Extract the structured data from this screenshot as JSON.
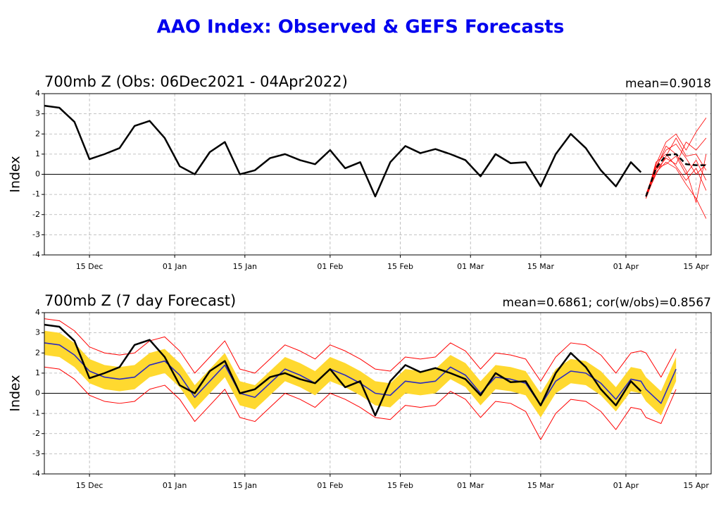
{
  "title": "AAO Index: Observed & GEFS Forecasts",
  "chart_data": [
    {
      "type": "line",
      "title": "700mb Z (Obs: 06Dec2021 - 04Apr2022)",
      "annotation": "mean=0.9018",
      "y_label": "Index",
      "x": [
        "2021-12-06",
        "2021-12-09",
        "2021-12-12",
        "2021-12-15",
        "2021-12-18",
        "2021-12-21",
        "2021-12-24",
        "2021-12-27",
        "2021-12-30",
        "2022-01-02",
        "2022-01-05",
        "2022-01-08",
        "2022-01-11",
        "2022-01-14",
        "2022-01-17",
        "2022-01-20",
        "2022-01-23",
        "2022-01-26",
        "2022-01-29",
        "2022-02-01",
        "2022-02-04",
        "2022-02-07",
        "2022-02-10",
        "2022-02-13",
        "2022-02-16",
        "2022-02-19",
        "2022-02-22",
        "2022-02-25",
        "2022-02-28",
        "2022-03-03",
        "2022-03-06",
        "2022-03-09",
        "2022-03-12",
        "2022-03-15",
        "2022-03-18",
        "2022-03-21",
        "2022-03-24",
        "2022-03-27",
        "2022-03-30",
        "2022-04-02",
        "2022-04-04",
        "2022-04-05",
        "2022-04-07",
        "2022-04-09",
        "2022-04-11",
        "2022-04-13",
        "2022-04-15",
        "2022-04-17"
      ],
      "series": [
        {
          "color": "#ff0000",
          "width": 0.8,
          "values": [
            null,
            null,
            null,
            null,
            null,
            null,
            null,
            null,
            null,
            null,
            null,
            null,
            null,
            null,
            null,
            null,
            null,
            null,
            null,
            null,
            null,
            null,
            null,
            null,
            null,
            null,
            null,
            null,
            null,
            null,
            null,
            null,
            null,
            null,
            null,
            null,
            null,
            null,
            null,
            null,
            null,
            -1.1,
            0.5,
            1.6,
            2.0,
            1.2,
            2.1,
            2.8
          ]
        },
        {
          "color": "#ff0000",
          "width": 0.8,
          "values": [
            null,
            null,
            null,
            null,
            null,
            null,
            null,
            null,
            null,
            null,
            null,
            null,
            null,
            null,
            null,
            null,
            null,
            null,
            null,
            null,
            null,
            null,
            null,
            null,
            null,
            null,
            null,
            null,
            null,
            null,
            null,
            null,
            null,
            null,
            null,
            null,
            null,
            null,
            null,
            null,
            null,
            -1.2,
            0.1,
            0.6,
            0.3,
            -0.5,
            -1.2,
            -2.2
          ]
        },
        {
          "color": "#ff0000",
          "width": 0.8,
          "values": [
            null,
            null,
            null,
            null,
            null,
            null,
            null,
            null,
            null,
            null,
            null,
            null,
            null,
            null,
            null,
            null,
            null,
            null,
            null,
            null,
            null,
            null,
            null,
            null,
            null,
            null,
            null,
            null,
            null,
            null,
            null,
            null,
            null,
            null,
            null,
            null,
            null,
            null,
            null,
            null,
            null,
            -1.0,
            0.4,
            1.2,
            1.5,
            0.8,
            0.0,
            0.5
          ]
        },
        {
          "color": "#ff0000",
          "width": 0.8,
          "values": [
            null,
            null,
            null,
            null,
            null,
            null,
            null,
            null,
            null,
            null,
            null,
            null,
            null,
            null,
            null,
            null,
            null,
            null,
            null,
            null,
            null,
            null,
            null,
            null,
            null,
            null,
            null,
            null,
            null,
            null,
            null,
            null,
            null,
            null,
            null,
            null,
            null,
            null,
            null,
            null,
            null,
            -1.1,
            0.2,
            0.8,
            0.5,
            1.6,
            1.2,
            1.8
          ]
        },
        {
          "color": "#ff0000",
          "width": 0.8,
          "values": [
            null,
            null,
            null,
            null,
            null,
            null,
            null,
            null,
            null,
            null,
            null,
            null,
            null,
            null,
            null,
            null,
            null,
            null,
            null,
            null,
            null,
            null,
            null,
            null,
            null,
            null,
            null,
            null,
            null,
            null,
            null,
            null,
            null,
            null,
            null,
            null,
            null,
            null,
            null,
            null,
            null,
            -1.2,
            0.6,
            1.0,
            0.4,
            -0.3,
            0.3,
            -0.8
          ]
        },
        {
          "color": "#ff0000",
          "width": 0.8,
          "values": [
            null,
            null,
            null,
            null,
            null,
            null,
            null,
            null,
            null,
            null,
            null,
            null,
            null,
            null,
            null,
            null,
            null,
            null,
            null,
            null,
            null,
            null,
            null,
            null,
            null,
            null,
            null,
            null,
            null,
            null,
            null,
            null,
            null,
            null,
            null,
            null,
            null,
            null,
            null,
            null,
            null,
            -1.0,
            0.3,
            1.4,
            1.0,
            0.2,
            -1.4,
            1.0
          ]
        },
        {
          "color": "#ff0000",
          "width": 0.8,
          "values": [
            null,
            null,
            null,
            null,
            null,
            null,
            null,
            null,
            null,
            null,
            null,
            null,
            null,
            null,
            null,
            null,
            null,
            null,
            null,
            null,
            null,
            null,
            null,
            null,
            null,
            null,
            null,
            null,
            null,
            null,
            null,
            null,
            null,
            null,
            null,
            null,
            null,
            null,
            null,
            null,
            null,
            -1.1,
            0.0,
            0.9,
            1.8,
            0.9,
            1.0,
            0.2
          ]
        },
        {
          "color": "#ff0000",
          "width": 0.8,
          "values": [
            null,
            null,
            null,
            null,
            null,
            null,
            null,
            null,
            null,
            null,
            null,
            null,
            null,
            null,
            null,
            null,
            null,
            null,
            null,
            null,
            null,
            null,
            null,
            null,
            null,
            null,
            null,
            null,
            null,
            null,
            null,
            null,
            null,
            null,
            null,
            null,
            null,
            null,
            null,
            null,
            null,
            -1.1,
            0.3,
            0.5,
            0.9,
            0.0,
            0.7,
            -0.3
          ]
        },
        {
          "color": "#000000",
          "width": 2.5,
          "values": [
            3.4,
            3.3,
            2.6,
            0.75,
            1.0,
            1.3,
            2.4,
            2.65,
            1.8,
            0.4,
            0.0,
            1.1,
            1.6,
            0.0,
            0.2,
            0.8,
            1.0,
            0.7,
            0.5,
            1.2,
            0.3,
            0.6,
            -1.1,
            0.6,
            1.4,
            1.05,
            1.25,
            1.0,
            0.7,
            -0.1,
            1.0,
            0.55,
            0.6,
            -0.6,
            1.0,
            2.0,
            1.3,
            0.2,
            -0.6,
            0.6,
            0.1,
            null,
            null,
            null,
            null,
            null,
            null,
            null
          ]
        },
        {
          "color": "#000000",
          "width": 2.5,
          "dashed": true,
          "values": [
            null,
            null,
            null,
            null,
            null,
            null,
            null,
            null,
            null,
            null,
            null,
            null,
            null,
            null,
            null,
            null,
            null,
            null,
            null,
            null,
            null,
            null,
            null,
            null,
            null,
            null,
            null,
            null,
            null,
            null,
            null,
            null,
            null,
            null,
            null,
            null,
            null,
            null,
            null,
            null,
            null,
            -1.1,
            0.3,
            0.95,
            1.0,
            0.5,
            0.45,
            0.45
          ]
        }
      ],
      "xlim": [
        "2021-12-06",
        "2022-04-18"
      ],
      "xticks": [
        {
          "value": "2021-12-15",
          "label": "15 Dec"
        },
        {
          "value": "2022-01-01",
          "label": "01 Jan"
        },
        {
          "value": "2022-01-15",
          "label": "15 Jan"
        },
        {
          "value": "2022-02-01",
          "label": "01 Feb"
        },
        {
          "value": "2022-02-15",
          "label": "15 Feb"
        },
        {
          "value": "2022-03-01",
          "label": "01 Mar"
        },
        {
          "value": "2022-03-15",
          "label": "15 Mar"
        },
        {
          "value": "2022-04-01",
          "label": "01 Apr"
        },
        {
          "value": "2022-04-15",
          "label": "15 Apr"
        }
      ],
      "ylim": [
        -4,
        4
      ],
      "yticks": [
        -4,
        -3,
        -2,
        -1,
        0,
        1,
        2,
        3,
        4
      ],
      "hline": 0,
      "grid": true
    },
    {
      "type": "line",
      "title": "700mb Z (7 day Forecast)",
      "annotation": "mean=0.6861; cor(w/obs)=0.8567",
      "y_label": "Index",
      "x": [
        "2021-12-06",
        "2021-12-09",
        "2021-12-12",
        "2021-12-15",
        "2021-12-18",
        "2021-12-21",
        "2021-12-24",
        "2021-12-27",
        "2021-12-30",
        "2022-01-02",
        "2022-01-05",
        "2022-01-08",
        "2022-01-11",
        "2022-01-14",
        "2022-01-17",
        "2022-01-20",
        "2022-01-23",
        "2022-01-26",
        "2022-01-29",
        "2022-02-01",
        "2022-02-04",
        "2022-02-07",
        "2022-02-10",
        "2022-02-13",
        "2022-02-16",
        "2022-02-19",
        "2022-02-22",
        "2022-02-25",
        "2022-02-28",
        "2022-03-03",
        "2022-03-06",
        "2022-03-09",
        "2022-03-12",
        "2022-03-15",
        "2022-03-18",
        "2022-03-21",
        "2022-03-24",
        "2022-03-27",
        "2022-03-30",
        "2022-04-02",
        "2022-04-04",
        "2022-04-05",
        "2022-04-08",
        "2022-04-11"
      ],
      "band": {
        "color": "#ffd92f",
        "lower": [
          1.9,
          1.8,
          1.3,
          0.5,
          0.2,
          0.1,
          0.2,
          0.8,
          1.0,
          0.3,
          -0.8,
          0.0,
          0.8,
          -0.6,
          -0.8,
          -0.1,
          0.6,
          0.3,
          -0.1,
          0.6,
          0.3,
          -0.1,
          -0.6,
          -0.7,
          0.0,
          -0.1,
          0.0,
          0.7,
          0.3,
          -0.6,
          0.2,
          0.1,
          -0.1,
          -1.2,
          0.0,
          0.5,
          0.4,
          -0.1,
          -0.9,
          0.1,
          0.0,
          -0.4,
          -1.1,
          0.6
        ],
        "upper": [
          3.1,
          3.0,
          2.5,
          1.7,
          1.4,
          1.3,
          1.4,
          2.0,
          2.2,
          1.5,
          0.4,
          1.2,
          2.0,
          0.6,
          0.4,
          1.1,
          1.8,
          1.5,
          1.1,
          1.8,
          1.5,
          1.1,
          0.6,
          0.5,
          1.2,
          1.1,
          1.2,
          1.9,
          1.5,
          0.6,
          1.4,
          1.3,
          1.1,
          0.0,
          1.2,
          1.7,
          1.6,
          1.1,
          0.3,
          1.3,
          1.2,
          0.8,
          0.1,
          1.8
        ]
      },
      "series": [
        {
          "color": "#ff0000",
          "width": 1,
          "values": [
            1.3,
            1.2,
            0.7,
            -0.1,
            -0.4,
            -0.5,
            -0.4,
            0.2,
            0.4,
            -0.3,
            -1.4,
            -0.6,
            0.2,
            -1.2,
            -1.4,
            -0.7,
            0.0,
            -0.3,
            -0.7,
            0.0,
            -0.3,
            -0.7,
            -1.2,
            -1.3,
            -0.6,
            -0.7,
            -0.6,
            0.1,
            -0.3,
            -1.2,
            -0.4,
            -0.5,
            -0.9,
            -2.3,
            -1.0,
            -0.3,
            -0.4,
            -0.9,
            -1.8,
            -0.7,
            -0.8,
            -1.2,
            -1.5,
            0.2
          ]
        },
        {
          "color": "#ff0000",
          "width": 1,
          "values": [
            3.7,
            3.6,
            3.1,
            2.3,
            2.0,
            1.9,
            2.0,
            2.6,
            2.8,
            2.1,
            1.0,
            1.8,
            2.6,
            1.2,
            1.0,
            1.7,
            2.4,
            2.1,
            1.7,
            2.4,
            2.1,
            1.7,
            1.2,
            1.1,
            1.8,
            1.7,
            1.8,
            2.5,
            2.1,
            1.2,
            2.0,
            1.9,
            1.7,
            0.6,
            1.8,
            2.5,
            2.4,
            1.9,
            1.0,
            2.0,
            2.1,
            2.0,
            0.8,
            2.2
          ]
        },
        {
          "color": "#2b2bbf",
          "width": 1.6,
          "values": [
            2.5,
            2.4,
            1.9,
            1.1,
            0.8,
            0.7,
            0.8,
            1.4,
            1.6,
            0.9,
            -0.2,
            0.6,
            1.4,
            0.0,
            -0.2,
            0.5,
            1.2,
            0.9,
            0.5,
            1.2,
            0.9,
            0.5,
            0.0,
            -0.1,
            0.6,
            0.5,
            0.6,
            1.3,
            0.9,
            0.0,
            0.8,
            0.7,
            0.5,
            -0.6,
            0.6,
            1.1,
            1.0,
            0.5,
            -0.3,
            0.7,
            0.6,
            0.2,
            -0.5,
            1.2
          ]
        },
        {
          "color": "#000000",
          "width": 2.5,
          "values": [
            3.4,
            3.3,
            2.6,
            0.75,
            1.0,
            1.3,
            2.4,
            2.65,
            1.8,
            0.4,
            0.0,
            1.1,
            1.6,
            0.0,
            0.2,
            0.8,
            1.0,
            0.7,
            0.5,
            1.2,
            0.3,
            0.6,
            -1.1,
            0.6,
            1.4,
            1.05,
            1.25,
            1.0,
            0.7,
            -0.1,
            1.0,
            0.55,
            0.6,
            -0.6,
            1.0,
            2.0,
            1.3,
            0.2,
            -0.6,
            0.6,
            0.1,
            null,
            null,
            null
          ]
        }
      ],
      "xlim": [
        "2021-12-06",
        "2022-04-18"
      ],
      "xticks": [
        {
          "value": "2021-12-15",
          "label": "15 Dec"
        },
        {
          "value": "2022-01-01",
          "label": "01 Jan"
        },
        {
          "value": "2022-01-15",
          "label": "15 Jan"
        },
        {
          "value": "2022-02-01",
          "label": "01 Feb"
        },
        {
          "value": "2022-02-15",
          "label": "15 Feb"
        },
        {
          "value": "2022-03-01",
          "label": "01 Mar"
        },
        {
          "value": "2022-03-15",
          "label": "15 Mar"
        },
        {
          "value": "2022-04-01",
          "label": "01 Apr"
        },
        {
          "value": "2022-04-15",
          "label": "15 Apr"
        }
      ],
      "ylim": [
        -4,
        4
      ],
      "yticks": [
        -4,
        -3,
        -2,
        -1,
        0,
        1,
        2,
        3,
        4
      ],
      "hline": 0,
      "grid": true
    }
  ]
}
